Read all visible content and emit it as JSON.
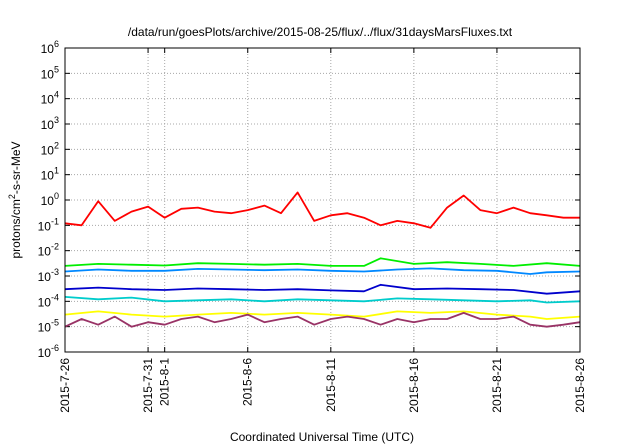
{
  "chart_data": {
    "type": "line",
    "title": "/data/run/goesPlots/archive/2015-08-25/flux/../flux/31daysMarsFluxes.txt",
    "xlabel": "Coordinated Universal Time (UTC)",
    "ylabel_parts": [
      "protons/cm",
      "2",
      "-s-sr-MeV"
    ],
    "y_scale": "log",
    "ylim": [
      1e-06,
      1000000.0
    ],
    "xlim": [
      "2015-07-26",
      "2015-08-26"
    ],
    "grid": true,
    "legend": "none",
    "x_tick_labels": [
      "2015-7-26",
      "2015-7-31",
      "2015-8-1",
      "2015-8-6",
      "2015-8-11",
      "2015-8-16",
      "2015-8-21",
      "2015-8-26"
    ],
    "x_tick_dates": [
      "2015-07-26",
      "2015-07-31",
      "2015-08-01",
      "2015-08-06",
      "2015-08-11",
      "2015-08-16",
      "2015-08-21",
      "2015-08-26"
    ],
    "y_tick_exponents": [
      -6,
      -5,
      -4,
      -3,
      -2,
      -1,
      0,
      1,
      2,
      3,
      4,
      5,
      6
    ],
    "series": [
      {
        "color": "#ff0000",
        "x": [
          "2015-07-26",
          "2015-07-27",
          "2015-07-28",
          "2015-07-29",
          "2015-07-30",
          "2015-07-31",
          "2015-08-01",
          "2015-08-02",
          "2015-08-03",
          "2015-08-04",
          "2015-08-05",
          "2015-08-06",
          "2015-08-07",
          "2015-08-08",
          "2015-08-09",
          "2015-08-10",
          "2015-08-11",
          "2015-08-12",
          "2015-08-13",
          "2015-08-14",
          "2015-08-15",
          "2015-08-16",
          "2015-08-17",
          "2015-08-18",
          "2015-08-19",
          "2015-08-20",
          "2015-08-21",
          "2015-08-22",
          "2015-08-23",
          "2015-08-24",
          "2015-08-25",
          "2015-08-26"
        ],
        "y": [
          0.12,
          0.1,
          0.9,
          0.15,
          0.35,
          0.55,
          0.2,
          0.45,
          0.5,
          0.35,
          0.3,
          0.4,
          0.6,
          0.3,
          2.0,
          0.15,
          0.25,
          0.3,
          0.2,
          0.1,
          0.15,
          0.12,
          0.08,
          0.5,
          1.5,
          0.4,
          0.3,
          0.5,
          0.3,
          0.25,
          0.2,
          0.2
        ]
      },
      {
        "color": "#00ee00",
        "x": [
          "2015-07-26",
          "2015-07-28",
          "2015-07-30",
          "2015-08-01",
          "2015-08-03",
          "2015-08-05",
          "2015-08-07",
          "2015-08-09",
          "2015-08-11",
          "2015-08-13",
          "2015-08-14",
          "2015-08-16",
          "2015-08-18",
          "2015-08-20",
          "2015-08-22",
          "2015-08-24",
          "2015-08-26"
        ],
        "y": [
          0.0025,
          0.003,
          0.0028,
          0.0026,
          0.0032,
          0.003,
          0.0028,
          0.003,
          0.0025,
          0.0025,
          0.005,
          0.003,
          0.0035,
          0.003,
          0.0025,
          0.0032,
          0.0025
        ]
      },
      {
        "color": "#0088ff",
        "x": [
          "2015-07-26",
          "2015-07-28",
          "2015-07-30",
          "2015-08-01",
          "2015-08-03",
          "2015-08-05",
          "2015-08-07",
          "2015-08-09",
          "2015-08-11",
          "2015-08-13",
          "2015-08-15",
          "2015-08-17",
          "2015-08-19",
          "2015-08-21",
          "2015-08-23",
          "2015-08-24",
          "2015-08-26"
        ],
        "y": [
          0.0015,
          0.0018,
          0.0016,
          0.0016,
          0.0019,
          0.0018,
          0.0017,
          0.0018,
          0.0016,
          0.0015,
          0.0018,
          0.002,
          0.0017,
          0.0016,
          0.0012,
          0.0014,
          0.0015
        ]
      },
      {
        "color": "#0000cc",
        "x": [
          "2015-07-26",
          "2015-07-28",
          "2015-07-30",
          "2015-08-01",
          "2015-08-03",
          "2015-08-05",
          "2015-08-07",
          "2015-08-09",
          "2015-08-11",
          "2015-08-13",
          "2015-08-14",
          "2015-08-16",
          "2015-08-18",
          "2015-08-20",
          "2015-08-22",
          "2015-08-24",
          "2015-08-26"
        ],
        "y": [
          0.0003,
          0.00035,
          0.0003,
          0.00028,
          0.00032,
          0.0003,
          0.00028,
          0.0003,
          0.00027,
          0.00025,
          0.00045,
          0.0003,
          0.00032,
          0.0003,
          0.00028,
          0.0002,
          0.00025
        ]
      },
      {
        "color": "#00cccc",
        "x": [
          "2015-07-26",
          "2015-07-28",
          "2015-07-30",
          "2015-08-01",
          "2015-08-03",
          "2015-08-05",
          "2015-08-07",
          "2015-08-09",
          "2015-08-11",
          "2015-08-13",
          "2015-08-15",
          "2015-08-17",
          "2015-08-19",
          "2015-08-21",
          "2015-08-23",
          "2015-08-24",
          "2015-08-26"
        ],
        "y": [
          0.00015,
          0.00012,
          0.00014,
          0.0001,
          0.00011,
          0.00012,
          0.0001,
          0.00012,
          0.00011,
          0.0001,
          0.00013,
          0.00012,
          0.00011,
          0.0001,
          0.00011,
          9e-05,
          0.0001
        ]
      },
      {
        "color": "#ffff00",
        "x": [
          "2015-07-26",
          "2015-07-28",
          "2015-07-30",
          "2015-08-01",
          "2015-08-03",
          "2015-08-05",
          "2015-08-07",
          "2015-08-09",
          "2015-08-11",
          "2015-08-13",
          "2015-08-15",
          "2015-08-17",
          "2015-08-19",
          "2015-08-21",
          "2015-08-23",
          "2015-08-24",
          "2015-08-26"
        ],
        "y": [
          3e-05,
          4e-05,
          3e-05,
          2.5e-05,
          3e-05,
          3.5e-05,
          3e-05,
          3.5e-05,
          3e-05,
          2.5e-05,
          4e-05,
          3.5e-05,
          4e-05,
          3e-05,
          2.5e-05,
          2e-05,
          2.5e-05
        ]
      },
      {
        "color": "#993366",
        "x": [
          "2015-07-26",
          "2015-07-27",
          "2015-07-28",
          "2015-07-29",
          "2015-07-30",
          "2015-07-31",
          "2015-08-01",
          "2015-08-02",
          "2015-08-03",
          "2015-08-04",
          "2015-08-05",
          "2015-08-06",
          "2015-08-07",
          "2015-08-08",
          "2015-08-09",
          "2015-08-10",
          "2015-08-11",
          "2015-08-12",
          "2015-08-13",
          "2015-08-14",
          "2015-08-15",
          "2015-08-16",
          "2015-08-17",
          "2015-08-18",
          "2015-08-19",
          "2015-08-20",
          "2015-08-21",
          "2015-08-22",
          "2015-08-23",
          "2015-08-24",
          "2015-08-25",
          "2015-08-26"
        ],
        "y": [
          1e-05,
          2e-05,
          1.2e-05,
          2.5e-05,
          1e-05,
          1.5e-05,
          1.2e-05,
          2e-05,
          2.5e-05,
          1.5e-05,
          2e-05,
          3e-05,
          1.5e-05,
          2e-05,
          2.5e-05,
          1.2e-05,
          2e-05,
          2.5e-05,
          2e-05,
          1.2e-05,
          2e-05,
          1.5e-05,
          2e-05,
          2e-05,
          3.5e-05,
          2e-05,
          2e-05,
          2.5e-05,
          1.2e-05,
          1e-05,
          1.2e-05,
          1.5e-05
        ]
      }
    ]
  }
}
